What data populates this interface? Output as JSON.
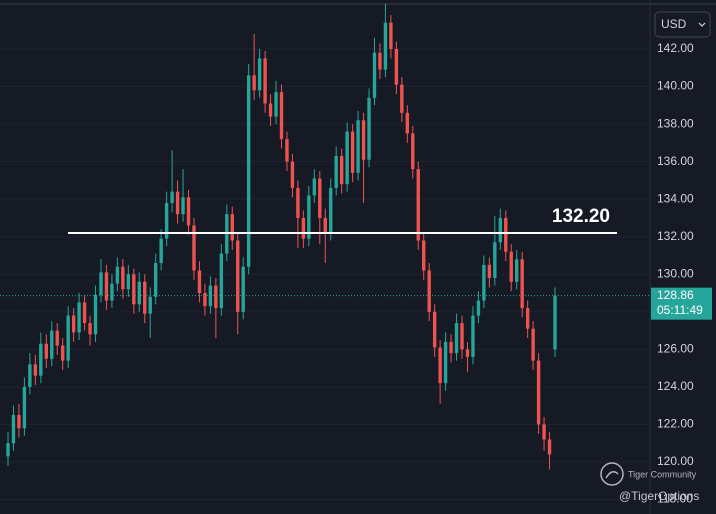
{
  "chart_data": {
    "type": "candlestick",
    "currency": "USD",
    "countdown": "05:11:49",
    "up_color": "#26a69a",
    "down_color": "#ef5350",
    "grid": true,
    "ylim": [
      117.23,
      144.61
    ],
    "yticks": [
      {
        "value": 118,
        "label": "118.00"
      },
      {
        "value": 120,
        "label": "120.00"
      },
      {
        "value": 122,
        "label": "122.00"
      },
      {
        "value": 124,
        "label": "124.00"
      },
      {
        "value": 126,
        "label": "126.00"
      },
      {
        "value": 128,
        "label": "128.00"
      },
      {
        "value": 130,
        "label": "130.00"
      },
      {
        "value": 132,
        "label": "132.00"
      },
      {
        "value": 134,
        "label": "134.00"
      },
      {
        "value": 136,
        "label": "136.00"
      },
      {
        "value": 138,
        "label": "138.00"
      },
      {
        "value": 140,
        "label": "140.00"
      },
      {
        "value": 142,
        "label": "142.00"
      }
    ],
    "level": {
      "value": 132.2,
      "label": "132.20"
    },
    "open": [
      120.3,
      121.0,
      122.5,
      121.8,
      124.0,
      125.2,
      124.6,
      126.3,
      125.5,
      127.0,
      126.2,
      125.4,
      127.8,
      126.9,
      128.5,
      127.4,
      126.8,
      128.9,
      130.1,
      128.6,
      129.5,
      130.4,
      129.2,
      130.0,
      128.4,
      129.6,
      127.9,
      128.8,
      130.6,
      131.9,
      133.8,
      134.4,
      133.2,
      134.1,
      132.6,
      130.2,
      129.0,
      128.3,
      129.4,
      128.2,
      131.1,
      133.2,
      131.8,
      128.0,
      130.4,
      140.6,
      139.8,
      141.5,
      139.1,
      138.4,
      139.7,
      137.2,
      136.0,
      134.6,
      133.0,
      131.9,
      134.2,
      135.1,
      133.0,
      132.2,
      134.6,
      136.3,
      134.8,
      137.6,
      135.4,
      138.2,
      136.1,
      139.4,
      141.8,
      140.9,
      143.4,
      142.0,
      140.1,
      138.6,
      137.5,
      135.6,
      131.8,
      130.2,
      128.0,
      126.1,
      124.2,
      126.4,
      125.8,
      127.4,
      126.0,
      125.6,
      127.8,
      128.6,
      130.5,
      129.8,
      131.7,
      133.0,
      131.2,
      129.6,
      130.8,
      128.2,
      127.1,
      125.4,
      122.0,
      121.2,
      126.0
    ],
    "high": [
      121.6,
      123.0,
      123.1,
      124.5,
      125.8,
      125.7,
      126.9,
      126.8,
      127.5,
      127.4,
      126.6,
      128.3,
      128.2,
      129.0,
      128.9,
      127.8,
      129.4,
      130.8,
      130.5,
      130.0,
      130.9,
      130.8,
      130.5,
      130.3,
      130.1,
      130.0,
      129.3,
      131.1,
      132.4,
      134.4,
      136.6,
      135.0,
      135.6,
      134.5,
      133.0,
      130.7,
      129.5,
      129.9,
      129.8,
      131.6,
      133.7,
      133.6,
      132.2,
      130.9,
      141.2,
      142.8,
      142.0,
      141.9,
      139.6,
      140.3,
      140.1,
      137.6,
      136.4,
      135.0,
      133.4,
      134.7,
      135.6,
      135.5,
      133.5,
      135.1,
      136.8,
      136.7,
      138.1,
      138.0,
      138.7,
      138.6,
      139.9,
      142.6,
      142.3,
      144.4,
      143.8,
      142.4,
      140.5,
      139.0,
      137.9,
      136.0,
      132.2,
      130.6,
      128.4,
      126.5,
      126.9,
      126.8,
      127.9,
      127.8,
      126.4,
      128.3,
      129.1,
      131.0,
      130.9,
      133.1,
      133.5,
      133.4,
      131.6,
      131.3,
      131.2,
      128.6,
      127.5,
      125.8,
      122.4,
      121.6,
      129.3
    ],
    "low": [
      119.8,
      120.6,
      121.3,
      121.4,
      123.6,
      124.1,
      124.2,
      125.0,
      125.1,
      125.7,
      124.9,
      125.0,
      126.4,
      126.5,
      127.0,
      126.2,
      126.4,
      128.5,
      128.1,
      128.2,
      129.1,
      128.7,
      128.8,
      127.9,
      128.0,
      127.4,
      126.6,
      128.4,
      130.2,
      131.5,
      133.3,
      132.7,
      132.8,
      132.1,
      129.7,
      128.5,
      127.8,
      127.9,
      126.6,
      127.8,
      130.7,
      131.3,
      126.8,
      127.6,
      130.0,
      139.3,
      139.4,
      138.6,
      137.9,
      138.0,
      136.7,
      135.5,
      134.1,
      131.4,
      131.4,
      131.5,
      133.8,
      131.6,
      130.6,
      131.8,
      134.2,
      134.3,
      134.4,
      134.9,
      135.0,
      133.8,
      135.7,
      139.0,
      140.4,
      140.5,
      141.5,
      139.6,
      138.1,
      137.0,
      135.1,
      131.3,
      129.7,
      127.5,
      125.6,
      123.1,
      123.8,
      125.3,
      125.4,
      125.5,
      124.8,
      125.2,
      127.4,
      128.2,
      129.3,
      129.4,
      131.3,
      130.7,
      129.1,
      129.2,
      127.7,
      126.6,
      124.9,
      121.5,
      120.6,
      119.6,
      125.6
    ],
    "close": [
      121.0,
      122.5,
      121.8,
      124.0,
      125.2,
      124.6,
      126.3,
      125.5,
      127.0,
      126.2,
      125.4,
      127.8,
      126.9,
      128.5,
      127.4,
      126.8,
      128.9,
      130.1,
      128.6,
      129.5,
      130.4,
      129.2,
      130.0,
      128.4,
      129.6,
      127.9,
      128.8,
      130.6,
      131.9,
      133.8,
      134.4,
      133.2,
      134.1,
      132.6,
      130.2,
      129.0,
      128.3,
      129.4,
      128.2,
      131.1,
      133.2,
      131.8,
      128.0,
      130.4,
      140.6,
      139.8,
      141.5,
      139.1,
      138.4,
      139.7,
      137.2,
      136.0,
      134.6,
      133.0,
      131.9,
      134.2,
      135.1,
      133.0,
      132.2,
      134.6,
      136.3,
      134.8,
      137.6,
      135.4,
      138.2,
      136.1,
      139.4,
      141.8,
      140.9,
      143.4,
      142.0,
      140.1,
      138.6,
      137.5,
      135.6,
      131.8,
      130.2,
      128.0,
      126.1,
      124.2,
      126.4,
      125.8,
      127.4,
      126.0,
      125.6,
      127.8,
      128.6,
      130.5,
      129.8,
      131.7,
      133.0,
      131.2,
      129.6,
      130.8,
      128.2,
      127.1,
      125.4,
      122.0,
      121.2,
      120.4,
      128.86
    ]
  },
  "watermark": {
    "brand": "Tiger Community",
    "handle": "@TigerOptions"
  }
}
